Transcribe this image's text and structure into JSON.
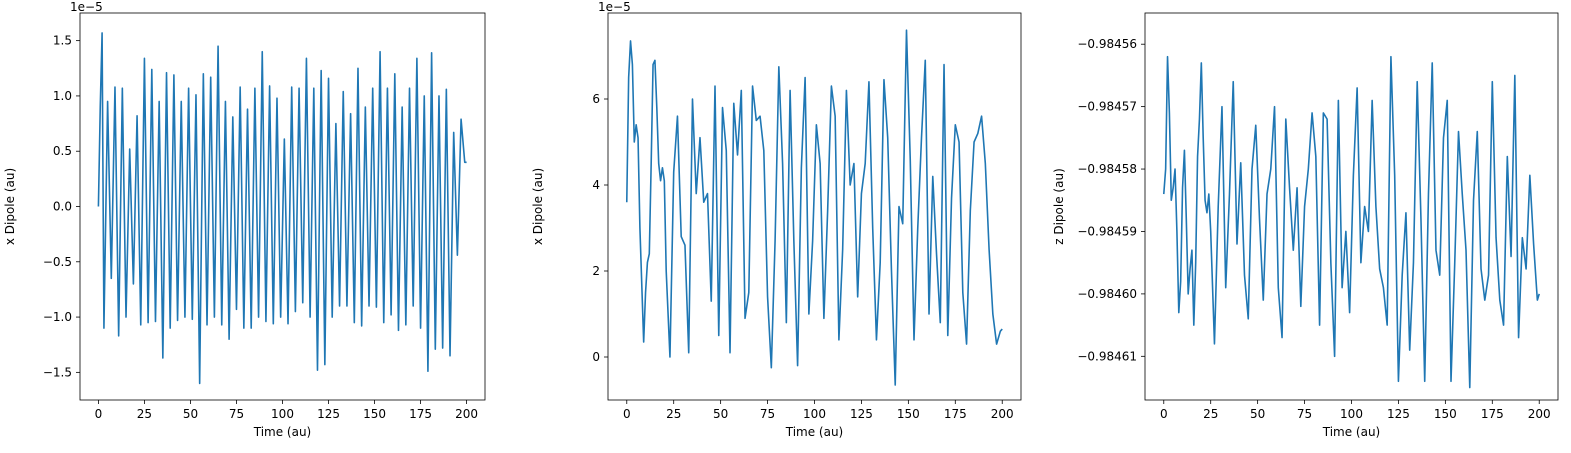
{
  "chart_data": [
    {
      "type": "line",
      "xlabel": "Time (au)",
      "ylabel": "x Dipole (au)",
      "offset_text": "1e−5",
      "color": "#1f77b4",
      "xlim": [
        -10,
        210
      ],
      "ylim": [
        -1.75,
        1.75
      ],
      "xticks": [
        0,
        25,
        50,
        75,
        100,
        125,
        150,
        175,
        200
      ],
      "xtick_labels": [
        "0",
        "25",
        "50",
        "75",
        "100",
        "125",
        "150",
        "175",
        "200"
      ],
      "yticks": [
        -1.5,
        -1.0,
        -0.5,
        0.0,
        0.5,
        1.0,
        1.5
      ],
      "ytick_labels": [
        "−1.5",
        "−1.0",
        "−0.5",
        "0.0",
        "0.5",
        "1.0",
        "1.5"
      ],
      "series": [
        {
          "x": [
            0,
            1,
            2,
            3,
            5,
            7,
            9,
            11,
            13,
            15,
            17,
            19,
            21,
            23,
            25,
            27,
            29,
            31,
            33,
            35,
            37,
            39,
            41,
            43,
            45,
            47,
            49,
            51,
            53,
            55,
            57,
            59,
            61,
            63,
            65,
            67,
            69,
            71,
            73,
            75,
            77,
            79,
            81,
            83,
            85,
            87,
            89,
            91,
            93,
            95,
            97,
            99,
            101,
            103,
            105,
            107,
            109,
            111,
            113,
            115,
            117,
            119,
            121,
            123,
            125,
            127,
            129,
            131,
            133,
            135,
            137,
            139,
            141,
            143,
            145,
            147,
            149,
            151,
            153,
            155,
            157,
            159,
            161,
            163,
            165,
            167,
            169,
            171,
            173,
            175,
            177,
            179,
            181,
            183,
            185,
            187,
            189,
            191,
            193,
            195,
            197,
            199,
            200
          ],
          "y": [
            0.0,
            0.9,
            1.57,
            -1.1,
            0.95,
            -0.65,
            1.08,
            -1.17,
            1.07,
            -1.0,
            0.52,
            -0.7,
            0.82,
            -1.07,
            1.34,
            -1.05,
            1.24,
            -1.04,
            0.95,
            -1.37,
            1.21,
            -1.1,
            1.19,
            -1.03,
            0.95,
            -1.0,
            1.07,
            -1.02,
            1.01,
            -1.6,
            1.2,
            -1.07,
            1.17,
            -1.0,
            1.45,
            -1.07,
            0.95,
            -1.2,
            0.81,
            -0.93,
            1.08,
            -1.1,
            0.88,
            -1.1,
            1.07,
            -1.0,
            1.4,
            -1.04,
            1.09,
            -1.06,
            0.98,
            -1.0,
            0.61,
            -1.06,
            1.08,
            -0.95,
            1.07,
            -0.87,
            1.34,
            -1.0,
            1.07,
            -1.48,
            1.23,
            -1.43,
            1.16,
            -1.0,
            0.75,
            -0.9,
            1.04,
            -0.9,
            0.84,
            -1.05,
            1.25,
            -1.08,
            0.9,
            -0.9,
            1.07,
            -0.91,
            1.4,
            -1.05,
            1.07,
            -0.98,
            1.2,
            -1.12,
            0.9,
            -1.07,
            1.07,
            -0.9,
            1.34,
            -1.1,
            1.0,
            -1.49,
            1.39,
            -1.29,
            1.0,
            -1.28,
            1.06,
            -1.35,
            0.67,
            -0.44,
            0.79,
            0.4,
            0.4
          ]
        }
      ]
    },
    {
      "type": "line",
      "xlabel": "Time (au)",
      "ylabel": "x Dipole (au)",
      "offset_text": "1e−5",
      "color": "#1f77b4",
      "xlim": [
        -10,
        210
      ],
      "ylim": [
        -1.0,
        8.0
      ],
      "xticks": [
        0,
        25,
        50,
        75,
        100,
        125,
        150,
        175,
        200
      ],
      "xtick_labels": [
        "0",
        "25",
        "50",
        "75",
        "100",
        "125",
        "150",
        "175",
        "200"
      ],
      "yticks": [
        0,
        2,
        4,
        6
      ],
      "ytick_labels": [
        "0",
        "2",
        "4",
        "6"
      ],
      "series": [
        {
          "x": [
            0,
            1,
            2,
            3,
            4,
            5,
            6,
            7,
            9,
            10,
            11,
            12,
            13,
            14,
            15,
            16,
            17,
            18,
            19,
            20,
            21,
            23,
            25,
            27,
            29,
            31,
            33,
            35,
            37,
            39,
            41,
            43,
            45,
            47,
            49,
            51,
            53,
            55,
            57,
            59,
            61,
            63,
            65,
            67,
            69,
            71,
            73,
            75,
            77,
            79,
            81,
            83,
            85,
            87,
            89,
            91,
            93,
            95,
            97,
            99,
            101,
            103,
            105,
            107,
            109,
            111,
            113,
            115,
            117,
            119,
            121,
            123,
            125,
            127,
            129,
            131,
            133,
            135,
            137,
            139,
            141,
            143,
            145,
            147,
            149,
            151,
            153,
            155,
            157,
            159,
            161,
            163,
            165,
            167,
            169,
            171,
            173,
            175,
            177,
            179,
            181,
            183,
            185,
            187,
            189,
            191,
            193,
            195,
            197,
            199,
            200
          ],
          "y": [
            3.6,
            6.5,
            7.35,
            6.8,
            5.0,
            5.4,
            5.1,
            3.0,
            0.35,
            1.5,
            2.2,
            2.4,
            4.5,
            6.8,
            6.9,
            5.8,
            4.5,
            4.1,
            4.4,
            4.1,
            2.0,
            0.0,
            4.3,
            5.6,
            2.8,
            2.6,
            0.1,
            6.0,
            3.8,
            5.1,
            3.6,
            3.8,
            1.3,
            6.3,
            0.5,
            5.8,
            4.8,
            0.1,
            5.9,
            4.7,
            6.2,
            0.9,
            1.5,
            6.3,
            5.5,
            5.6,
            4.8,
            1.4,
            -0.25,
            2.7,
            6.75,
            4.5,
            0.8,
            6.2,
            2.7,
            -0.2,
            4.4,
            6.5,
            1.0,
            2.7,
            5.4,
            4.5,
            0.9,
            3.4,
            6.3,
            5.6,
            0.4,
            2.5,
            6.2,
            4.0,
            4.5,
            1.4,
            3.8,
            4.5,
            6.4,
            3.0,
            0.4,
            2.2,
            6.45,
            5.1,
            2.0,
            -0.65,
            3.5,
            3.1,
            7.6,
            4.6,
            0.4,
            3.0,
            5.1,
            6.9,
            1.0,
            4.2,
            2.4,
            0.8,
            6.8,
            0.5,
            3.7,
            5.4,
            5.0,
            1.5,
            0.3,
            3.4,
            5.0,
            5.2,
            5.6,
            4.5,
            2.5,
            1.0,
            0.3,
            0.6,
            0.65
          ]
        }
      ]
    },
    {
      "type": "line",
      "xlabel": "Time (au)",
      "ylabel": "z Dipole (au)",
      "offset_text": "",
      "color": "#1f77b4",
      "xlim": [
        -10,
        210
      ],
      "ylim": [
        -0.984617,
        -0.984555
      ],
      "xticks": [
        0,
        25,
        50,
        75,
        100,
        125,
        150,
        175,
        200
      ],
      "xtick_labels": [
        "0",
        "25",
        "50",
        "75",
        "100",
        "125",
        "150",
        "175",
        "200"
      ],
      "yticks": [
        -0.98456,
        -0.98457,
        -0.98458,
        -0.98459,
        -0.9846,
        -0.98461
      ],
      "ytick_labels": [
        "−0.98456",
        "−0.98457",
        "−0.98458",
        "−0.98459",
        "−0.98460",
        "−0.98461"
      ],
      "series": [
        {
          "x": [
            0,
            1,
            2,
            3,
            4,
            5,
            6,
            7,
            8,
            9,
            10,
            11,
            12,
            13,
            14,
            15,
            16,
            17,
            18,
            19,
            20,
            21,
            22,
            23,
            24,
            25,
            27,
            29,
            31,
            33,
            35,
            37,
            39,
            41,
            43,
            45,
            47,
            49,
            51,
            53,
            55,
            57,
            59,
            61,
            63,
            65,
            67,
            69,
            71,
            73,
            75,
            77,
            79,
            81,
            83,
            85,
            87,
            89,
            91,
            93,
            95,
            97,
            99,
            101,
            103,
            105,
            107,
            109,
            111,
            113,
            115,
            117,
            119,
            121,
            123,
            125,
            127,
            129,
            131,
            133,
            135,
            137,
            139,
            141,
            143,
            145,
            147,
            149,
            151,
            153,
            155,
            157,
            159,
            161,
            163,
            165,
            167,
            169,
            171,
            173,
            175,
            177,
            179,
            181,
            183,
            185,
            187,
            189,
            191,
            193,
            195,
            197,
            199,
            200
          ],
          "y": [
            -0.984584,
            -0.98458,
            -0.984562,
            -0.984571,
            -0.984585,
            -0.984583,
            -0.98458,
            -0.98459,
            -0.984603,
            -0.984598,
            -0.984583,
            -0.984577,
            -0.984588,
            -0.9846,
            -0.984596,
            -0.984593,
            -0.984605,
            -0.984595,
            -0.984578,
            -0.984572,
            -0.984563,
            -0.984575,
            -0.984585,
            -0.984587,
            -0.984584,
            -0.98459,
            -0.984608,
            -0.984586,
            -0.98457,
            -0.984599,
            -0.984584,
            -0.984566,
            -0.984592,
            -0.984579,
            -0.984597,
            -0.984604,
            -0.98458,
            -0.984573,
            -0.984588,
            -0.984601,
            -0.984584,
            -0.98458,
            -0.98457,
            -0.984599,
            -0.984607,
            -0.984572,
            -0.984583,
            -0.984593,
            -0.984583,
            -0.984602,
            -0.984586,
            -0.98458,
            -0.984571,
            -0.984578,
            -0.984605,
            -0.984571,
            -0.984572,
            -0.984595,
            -0.98461,
            -0.984569,
            -0.984599,
            -0.98459,
            -0.984603,
            -0.984581,
            -0.984567,
            -0.984595,
            -0.984586,
            -0.98459,
            -0.984569,
            -0.984586,
            -0.984596,
            -0.984599,
            -0.984605,
            -0.984562,
            -0.984581,
            -0.984614,
            -0.984597,
            -0.984587,
            -0.984609,
            -0.984595,
            -0.984566,
            -0.984588,
            -0.984614,
            -0.984584,
            -0.984563,
            -0.984593,
            -0.984597,
            -0.984575,
            -0.984569,
            -0.984614,
            -0.984595,
            -0.984574,
            -0.984584,
            -0.984593,
            -0.984615,
            -0.984585,
            -0.984574,
            -0.984596,
            -0.984601,
            -0.984597,
            -0.984566,
            -0.984591,
            -0.984601,
            -0.984605,
            -0.984578,
            -0.984594,
            -0.984565,
            -0.984607,
            -0.984591,
            -0.984596,
            -0.984581,
            -0.984592,
            -0.984601,
            -0.9846
          ]
        }
      ]
    }
  ]
}
